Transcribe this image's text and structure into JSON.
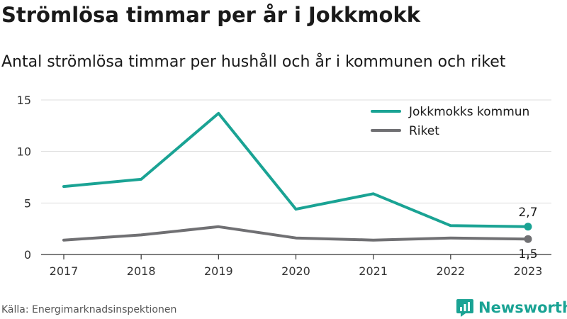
{
  "title": "Strömlösa timmar per år i Jokkmokk",
  "subtitle": "Antal strömlösa timmar per hushåll och år i kommunen och riket",
  "source": "Källa: Energimarknadsinspektionen",
  "brand": "Newsworthy",
  "colors": {
    "brand": "#1aa394",
    "series_jokkmokk": "#1aa394",
    "series_riket": "#707073",
    "grid": "#dddddd"
  },
  "chart_data": {
    "type": "line",
    "x": [
      "2017",
      "2018",
      "2019",
      "2020",
      "2021",
      "2022",
      "2023"
    ],
    "ylim": [
      0,
      15
    ],
    "yticks": [
      0,
      5,
      10,
      15
    ],
    "grid": true,
    "legend": "top-right",
    "series": [
      {
        "name": "Jokkmokks kommun",
        "values": [
          6.6,
          7.3,
          13.7,
          4.4,
          5.9,
          2.8,
          2.7
        ],
        "end_label": "2,7"
      },
      {
        "name": "Riket",
        "values": [
          1.4,
          1.9,
          2.7,
          1.6,
          1.4,
          1.6,
          1.5
        ],
        "end_label": "1,5"
      }
    ]
  }
}
